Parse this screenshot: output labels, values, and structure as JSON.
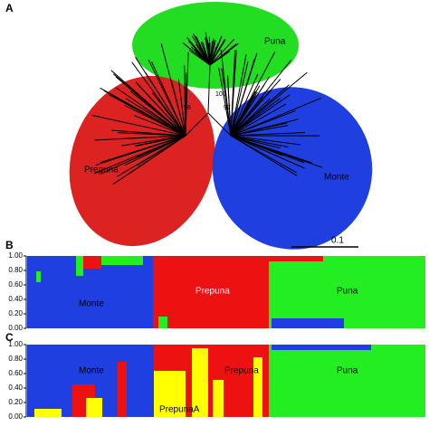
{
  "panel_labels": [
    "A",
    "B",
    "C"
  ],
  "tree": {
    "clusters": [
      "Puna",
      "Prepuna",
      "Monte"
    ],
    "support": [
      "100",
      "98",
      "97"
    ],
    "scale": "0.1"
  },
  "structure": [
    {
      "yticks": [
        {
          "value": 0,
          "label": "0.00"
        },
        {
          "value": 0.2,
          "label": "0.20"
        },
        {
          "value": 0.4,
          "label": "0.40"
        },
        {
          "value": 0.6,
          "label": "0.60"
        },
        {
          "value": 0.8,
          "label": "0.80"
        },
        {
          "value": 1,
          "label": "1.00"
        }
      ],
      "labels": [
        "Monte",
        "Prepuna",
        "Puna"
      ]
    },
    {
      "yticks": [
        {
          "value": 0,
          "label": "0.00"
        },
        {
          "value": 0.2,
          "label": "0.20"
        },
        {
          "value": 0.4,
          "label": "0.40"
        },
        {
          "value": 0.6,
          "label": "0.60"
        },
        {
          "value": 0.8,
          "label": "0.80"
        },
        {
          "value": 1,
          "label": "1.00"
        }
      ],
      "labels": [
        "Monte",
        "PrepunaA",
        "Prepuna",
        "Puna"
      ]
    }
  ]
}
